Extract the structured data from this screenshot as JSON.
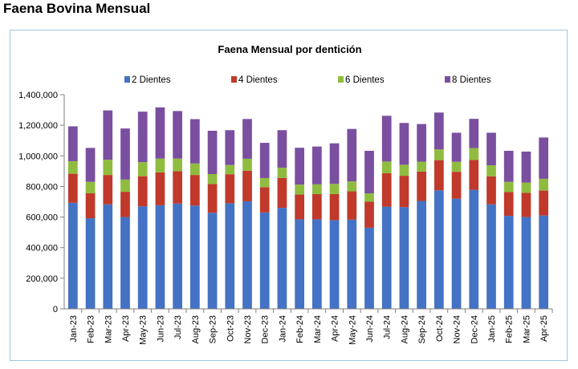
{
  "page": {
    "heading": "Faena Bovina Mensual"
  },
  "chart_data": {
    "type": "bar",
    "stacked": true,
    "title": "Faena Mensual por dentición",
    "xlabel": "",
    "ylabel": "",
    "ylim": [
      0,
      1400000
    ],
    "yticks": [
      "0",
      "200,000",
      "400,000",
      "600,000",
      "800,000",
      "1,000,000",
      "1,200,000",
      "1,400,000"
    ],
    "legend_position": "top",
    "grid": false,
    "categories": [
      "Jan-23",
      "Feb-23",
      "Mar-23",
      "Apr-23",
      "May-23",
      "Jun-23",
      "Jul-23",
      "Aug-23",
      "Sep-23",
      "Oct-23",
      "Nov-23",
      "Dec-23",
      "Jan-24",
      "Feb-24",
      "Mar-24",
      "Apr-24",
      "May-24",
      "Jun-24",
      "Jul-24",
      "Aug-24",
      "Sep-24",
      "Oct-24",
      "Nov-24",
      "Dec-24",
      "Jan-25",
      "Feb-25",
      "Mar-25",
      "Apr-25"
    ],
    "series": [
      {
        "name": "2 Dientes",
        "color": "#4472c4",
        "values": [
          693000,
          592000,
          683000,
          600000,
          670000,
          677000,
          688000,
          675000,
          628000,
          690000,
          703000,
          630000,
          660000,
          585000,
          585000,
          580000,
          583000,
          530000,
          668000,
          665000,
          705000,
          775000,
          720000,
          778000,
          683000,
          608000,
          600000,
          610000
        ]
      },
      {
        "name": "4 Dientes",
        "color": "#c0392b",
        "values": [
          190000,
          163000,
          192000,
          165000,
          197000,
          215000,
          212000,
          200000,
          188000,
          190000,
          200000,
          165000,
          195000,
          162000,
          165000,
          170000,
          185000,
          170000,
          218000,
          205000,
          192000,
          197000,
          176000,
          195000,
          183000,
          155000,
          158000,
          163000
        ]
      },
      {
        "name": "6 Dientes",
        "color": "#8fbc3f",
        "values": [
          82000,
          75000,
          100000,
          80000,
          92000,
          90000,
          82000,
          75000,
          65000,
          60000,
          78000,
          60000,
          68000,
          65000,
          64000,
          67000,
          65000,
          55000,
          77000,
          72000,
          65000,
          70000,
          65000,
          78000,
          72000,
          67000,
          67000,
          77000
        ]
      },
      {
        "name": "8 Dientes",
        "color": "#7b4fa0",
        "values": [
          228000,
          222000,
          322000,
          334000,
          330000,
          335000,
          311000,
          290000,
          283000,
          228000,
          260000,
          230000,
          245000,
          241000,
          247000,
          265000,
          343000,
          278000,
          299000,
          273000,
          246000,
          241000,
          190000,
          191000,
          213000,
          203000,
          203000,
          270000
        ]
      }
    ]
  }
}
